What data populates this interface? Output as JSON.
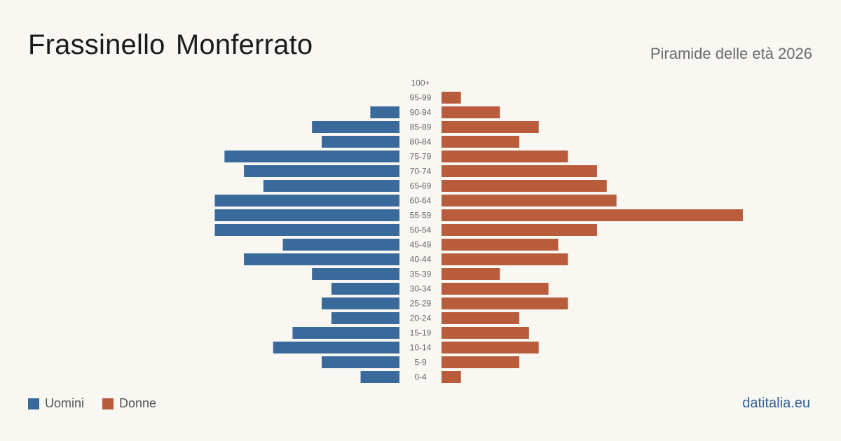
{
  "header": {
    "title": "Frassinello Monferrato",
    "subtitle": "Piramide delle età 2026"
  },
  "footer": {
    "brand": "datitalia.eu"
  },
  "colors": {
    "men": "#3a6a9b",
    "women": "#b95c3c",
    "label": "#666666"
  },
  "chart_data": {
    "type": "bar",
    "orientation": "horizontal-pyramid",
    "categories": [
      "100+",
      "95-99",
      "90-94",
      "85-89",
      "80-84",
      "75-79",
      "70-74",
      "65-69",
      "60-64",
      "55-59",
      "50-54",
      "45-49",
      "40-44",
      "35-39",
      "30-34",
      "25-29",
      "20-24",
      "15-19",
      "10-14",
      "5-9",
      "0-4"
    ],
    "series": [
      {
        "name": "Uomini",
        "values": [
          0,
          0,
          3,
          9,
          8,
          18,
          16,
          14,
          19,
          19,
          19,
          12,
          16,
          9,
          7,
          8,
          7,
          11,
          13,
          8,
          4
        ]
      },
      {
        "name": "Donne",
        "values": [
          0,
          2,
          6,
          10,
          8,
          13,
          16,
          17,
          18,
          31,
          16,
          12,
          13,
          6,
          11,
          13,
          8,
          9,
          10,
          8,
          2
        ]
      }
    ],
    "legend": [
      "Uomini",
      "Donne"
    ],
    "legend_position": "bottom-left",
    "grid": false
  }
}
